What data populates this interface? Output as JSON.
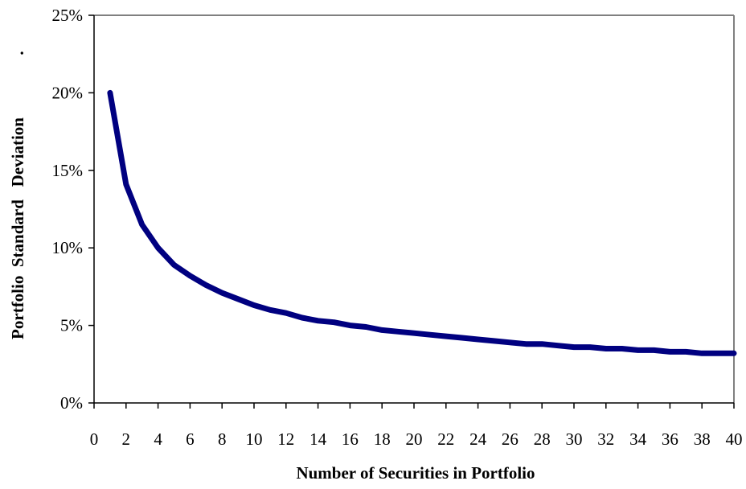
{
  "chart_data": {
    "type": "line",
    "title": "",
    "xlabel": "Number of Securities in Portfolio",
    "ylabel": "Portfolio  Standard   Deviation",
    "ylabel_suffix": ".",
    "xlim": [
      0,
      40
    ],
    "ylim": [
      0,
      0.25
    ],
    "x_ticks": [
      0,
      2,
      4,
      6,
      8,
      10,
      12,
      14,
      16,
      18,
      20,
      22,
      24,
      26,
      28,
      30,
      32,
      34,
      36,
      38,
      40
    ],
    "y_ticks": [
      0,
      0.05,
      0.1,
      0.15,
      0.2,
      0.25
    ],
    "y_tick_labels": [
      "0%",
      "5%",
      "10%",
      "15%",
      "20%",
      "25%"
    ],
    "grid": false,
    "legend": "none",
    "series": [
      {
        "color": "#000080",
        "x": [
          1,
          2,
          3,
          4,
          5,
          6,
          7,
          8,
          9,
          10,
          11,
          12,
          13,
          14,
          15,
          16,
          17,
          18,
          19,
          20,
          21,
          22,
          23,
          24,
          25,
          26,
          27,
          28,
          29,
          30,
          31,
          32,
          33,
          34,
          35,
          36,
          37,
          38,
          39,
          40
        ],
        "values": [
          0.2,
          0.141,
          0.115,
          0.1,
          0.089,
          0.082,
          0.076,
          0.071,
          0.067,
          0.063,
          0.06,
          0.058,
          0.055,
          0.053,
          0.052,
          0.05,
          0.049,
          0.047,
          0.046,
          0.045,
          0.044,
          0.043,
          0.042,
          0.041,
          0.04,
          0.039,
          0.038,
          0.038,
          0.037,
          0.036,
          0.036,
          0.035,
          0.035,
          0.034,
          0.034,
          0.033,
          0.033,
          0.032,
          0.032,
          0.032
        ]
      }
    ]
  }
}
